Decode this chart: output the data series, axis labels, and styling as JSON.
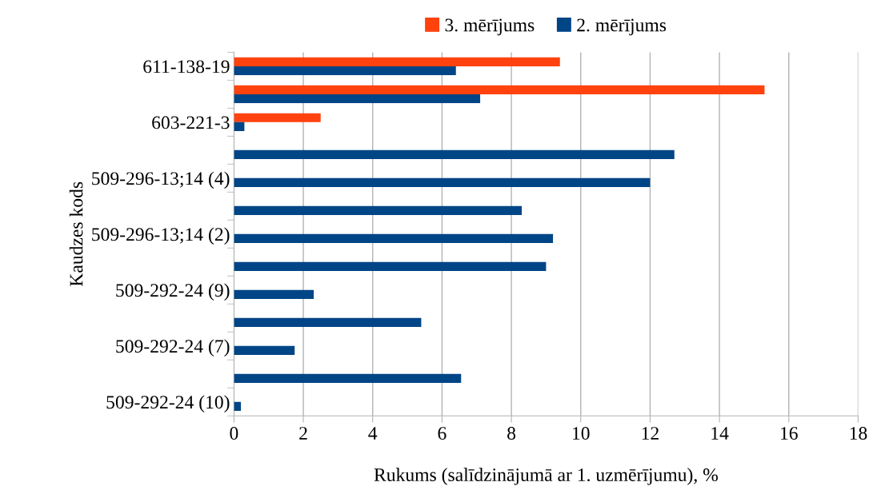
{
  "chart_data": {
    "type": "bar",
    "orientation": "horizontal",
    "xlabel": "Rukums (salīdzinājumā ar 1. uzmērījumu), %",
    "ylabel": "Kaudzes kods",
    "categories": [
      "611-138-19",
      null,
      "603-221-3",
      null,
      "509-296-13;14 (4)",
      null,
      "509-296-13;14 (2)",
      null,
      "509-292-24 (9)",
      null,
      "509-292-24 (7)",
      null,
      "509-292-24 (10)"
    ],
    "series": [
      {
        "name": "3. mērījums",
        "color": "#ff420e",
        "values": [
          9.4,
          15.3,
          2.5,
          null,
          null,
          null,
          null,
          null,
          null,
          null,
          null,
          null,
          null
        ]
      },
      {
        "name": "2. mērījums",
        "color": "#004586",
        "values": [
          6.4,
          7.1,
          0.3,
          12.7,
          12.0,
          8.3,
          9.2,
          9.0,
          2.3,
          5.4,
          1.75,
          6.55,
          0.2
        ]
      }
    ],
    "xlim": [
      0,
      18
    ],
    "xticks": [
      0,
      2,
      4,
      6,
      8,
      10,
      12,
      14,
      16,
      18
    ],
    "grid": "x",
    "legend": "top"
  }
}
